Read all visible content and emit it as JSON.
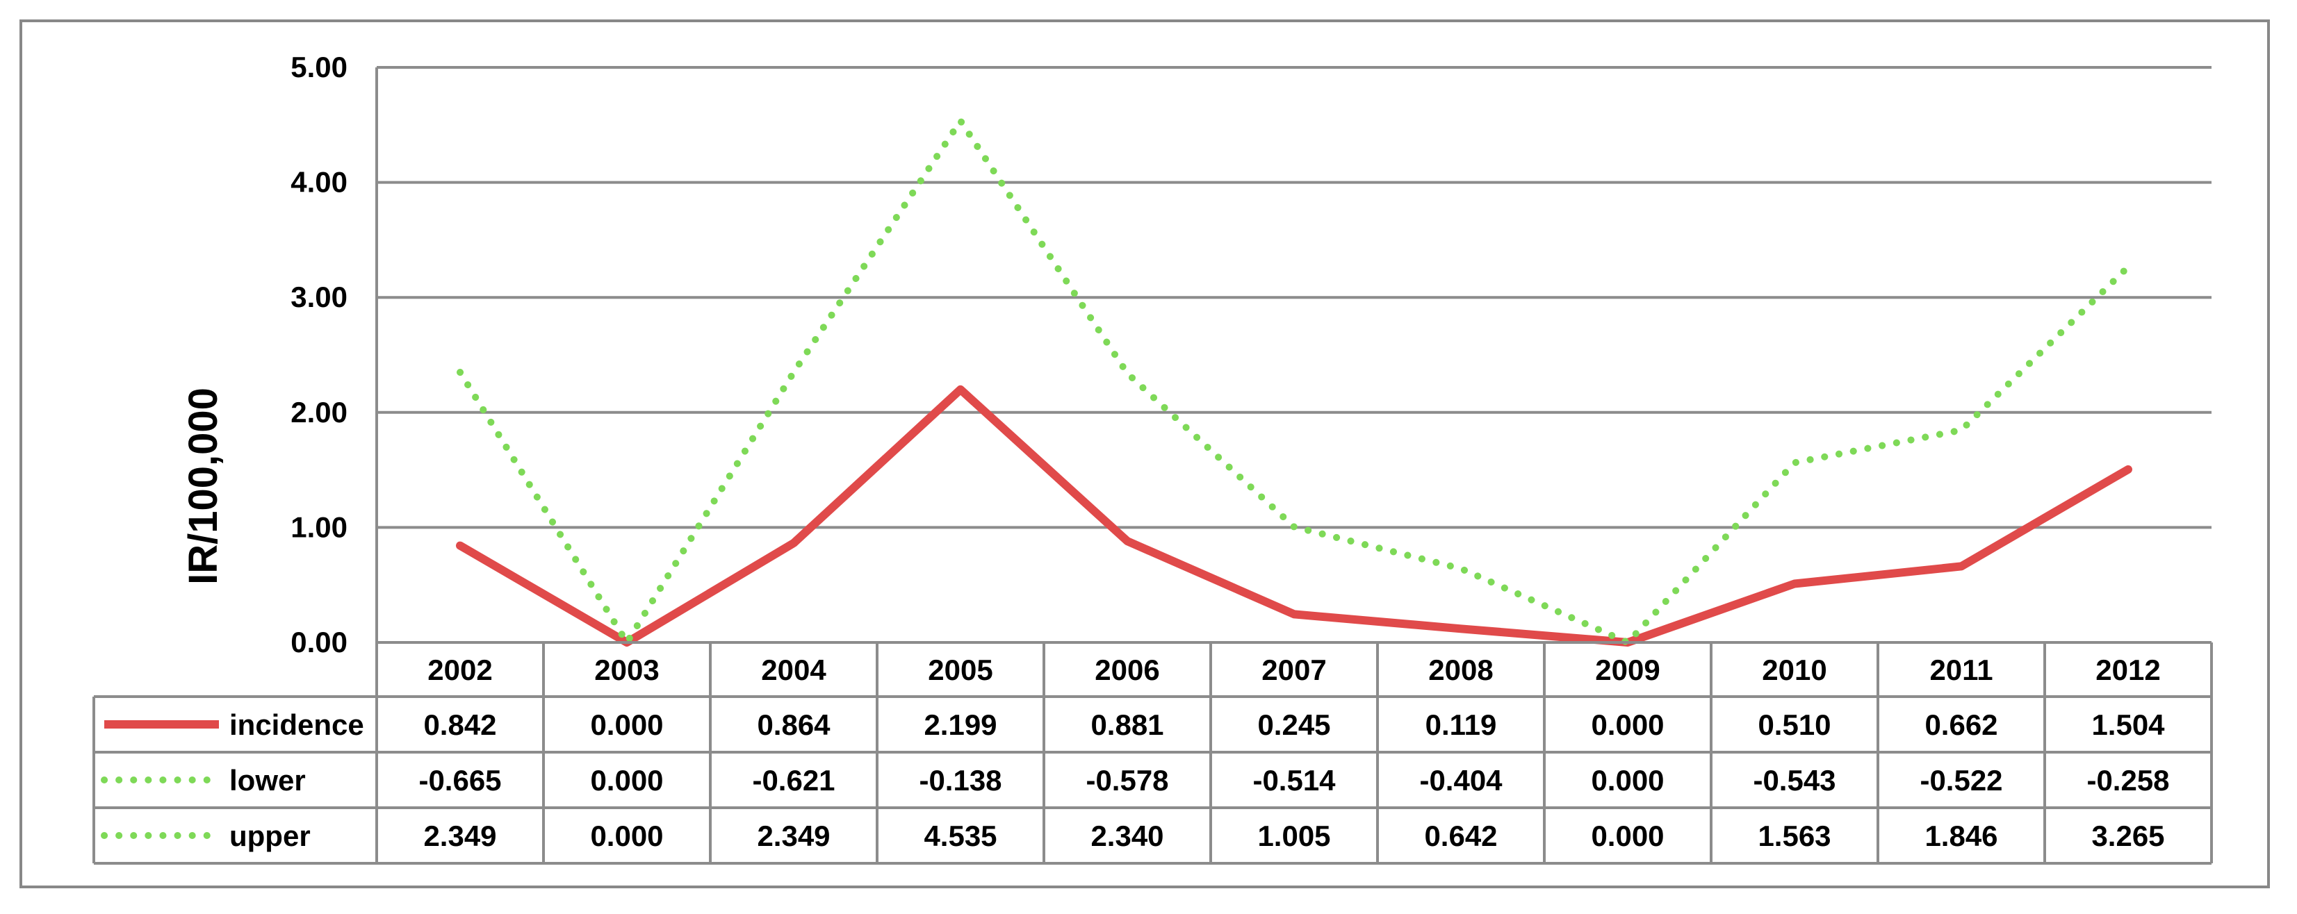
{
  "chart_data": {
    "type": "line",
    "title": "",
    "xlabel": "",
    "ylabel": "IR/100,000",
    "ylim": [
      0,
      5
    ],
    "yticks": [
      "0.00",
      "1.00",
      "2.00",
      "3.00",
      "4.00",
      "5.00"
    ],
    "categories": [
      "2002",
      "2003",
      "2004",
      "2005",
      "2006",
      "2007",
      "2008",
      "2009",
      "2010",
      "2011",
      "2012"
    ],
    "grid": true,
    "legend": "data-table",
    "series": [
      {
        "name": "incidence",
        "style": "solid",
        "color": "#e04a4a",
        "values": [
          0.842,
          0.0,
          0.864,
          2.199,
          0.881,
          0.245,
          0.119,
          0.0,
          0.51,
          0.662,
          1.504
        ],
        "labels": [
          "0.842",
          "0.000",
          "0.864",
          "2.199",
          "0.881",
          "0.245",
          "0.119",
          "0.000",
          "0.510",
          "0.662",
          "1.504"
        ],
        "plotted": true
      },
      {
        "name": "lower",
        "style": "dotted",
        "color": "#7ed957",
        "values": [
          -0.665,
          0.0,
          -0.621,
          -0.138,
          -0.578,
          -0.514,
          -0.404,
          0.0,
          -0.543,
          -0.522,
          -0.258
        ],
        "labels": [
          "-0.665",
          "0.000",
          "-0.621",
          "-0.138",
          "-0.578",
          "-0.514",
          "-0.404",
          "0.000",
          "-0.543",
          "-0.522",
          "-0.258"
        ],
        "plotted": false
      },
      {
        "name": "upper",
        "style": "dotted",
        "color": "#7ed957",
        "values": [
          2.349,
          0.0,
          2.349,
          4.535,
          2.34,
          1.005,
          0.642,
          0.0,
          1.563,
          1.846,
          3.265
        ],
        "labels": [
          "2.349",
          "0.000",
          "2.349",
          "4.535",
          "2.340",
          "1.005",
          "0.642",
          "0.000",
          "1.563",
          "1.846",
          "3.265"
        ],
        "plotted": true
      }
    ]
  }
}
